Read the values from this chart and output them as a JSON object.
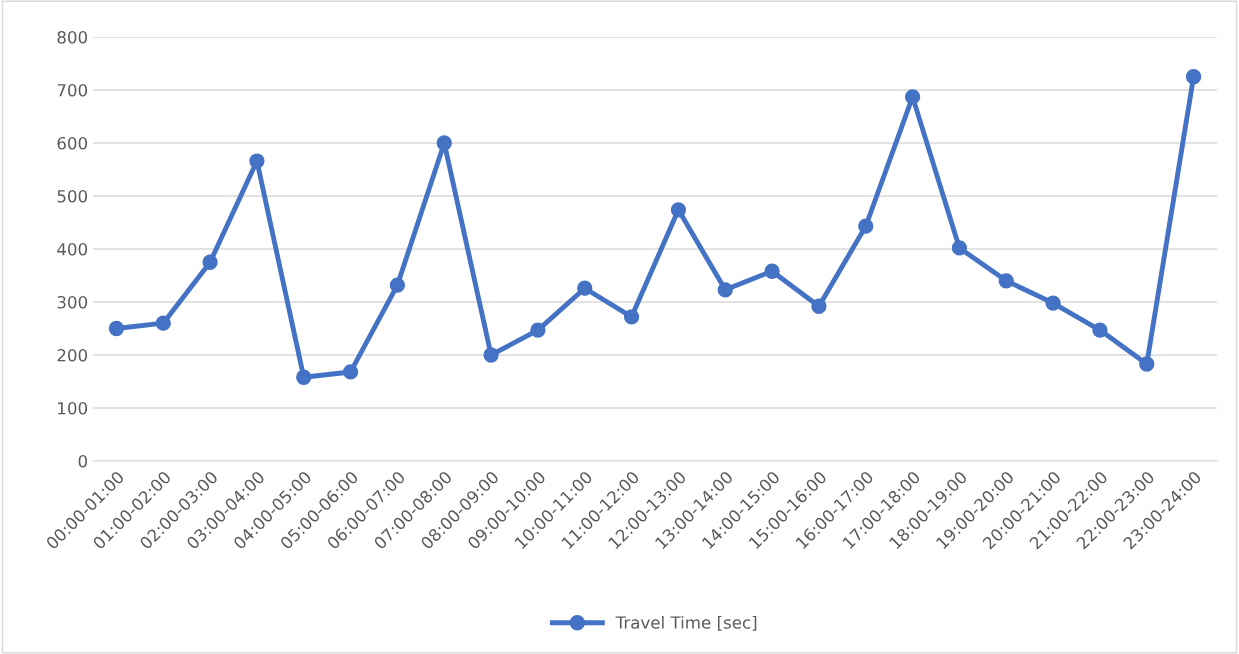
{
  "chart_data": {
    "type": "line",
    "categories": [
      "00:00-01:00",
      "01:00-02:00",
      "02:00-03:00",
      "03:00-04:00",
      "04:00-05:00",
      "05:00-06:00",
      "06:00-07:00",
      "07:00-08:00",
      "08:00-09:00",
      "09:00-10:00",
      "10:00-11:00",
      "11:00-12:00",
      "12:00-13:00",
      "13:00-14:00",
      "14:00-15:00",
      "15:00-16:00",
      "16:00-17:00",
      "17:00-18:00",
      "18:00-19:00",
      "19:00-20:00",
      "20:00-21:00",
      "21:00-22:00",
      "22:00-23:00",
      "23:00-24:00"
    ],
    "series": [
      {
        "name": "Travel Time [sec]",
        "color": "#4472c4",
        "values": [
          250,
          260,
          375,
          566,
          158,
          168,
          332,
          600,
          200,
          247,
          326,
          272,
          474,
          323,
          358,
          292,
          443,
          687,
          402,
          340,
          298,
          247,
          183,
          725
        ]
      }
    ],
    "ylim": [
      0,
      800
    ],
    "yticks": [
      0,
      100,
      200,
      300,
      400,
      500,
      600,
      700,
      800
    ],
    "grid": "y",
    "legend": "bottom",
    "marker": "circle",
    "line_style": "solid"
  }
}
